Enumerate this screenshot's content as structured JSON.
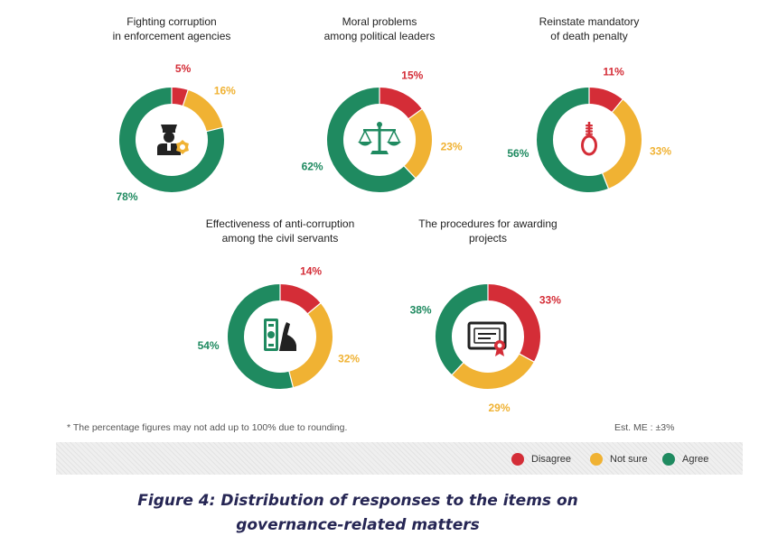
{
  "colors": {
    "disagree": "#d42d37",
    "not_sure": "#f0b233",
    "agree": "#1f8a60",
    "icon_dark": "#222222"
  },
  "chart_data": [
    {
      "type": "pie",
      "title": "Fighting corruption\nin enforcement agencies",
      "icon": "police-officer-badge-icon",
      "series": [
        {
          "name": "Disagree",
          "value": 5,
          "label": "5%"
        },
        {
          "name": "Not sure",
          "value": 16,
          "label": "16%"
        },
        {
          "name": "Agree",
          "value": 78,
          "label": "78%"
        }
      ]
    },
    {
      "type": "pie",
      "title": "Moral problems\namong political leaders",
      "icon": "scales-icon",
      "series": [
        {
          "name": "Disagree",
          "value": 15,
          "label": "15%"
        },
        {
          "name": "Not sure",
          "value": 23,
          "label": "23%"
        },
        {
          "name": "Agree",
          "value": 62,
          "label": "62%"
        }
      ]
    },
    {
      "type": "pie",
      "title": "Reinstate mandatory\nof death penalty",
      "icon": "noose-icon",
      "series": [
        {
          "name": "Disagree",
          "value": 11,
          "label": "11%"
        },
        {
          "name": "Not sure",
          "value": 33,
          "label": "33%"
        },
        {
          "name": "Agree",
          "value": 56,
          "label": "56%"
        }
      ]
    },
    {
      "type": "pie",
      "title": "Effectiveness of anti-corruption\namong the civil servants",
      "icon": "money-hand-icon",
      "series": [
        {
          "name": "Disagree",
          "value": 14,
          "label": "14%"
        },
        {
          "name": "Not sure",
          "value": 32,
          "label": "32%"
        },
        {
          "name": "Agree",
          "value": 54,
          "label": "54%"
        }
      ]
    },
    {
      "type": "pie",
      "title": "The procedures for awarding\nprojects",
      "icon": "certificate-icon",
      "series": [
        {
          "name": "Disagree",
          "value": 33,
          "label": "33%"
        },
        {
          "name": "Not sure",
          "value": 29,
          "label": "29%"
        },
        {
          "name": "Agree",
          "value": 38,
          "label": "38%"
        }
      ]
    }
  ],
  "footnote": "* The percentage figures may not add up to 100% due to rounding.",
  "margin_of_error": "Est. ME : ±3%",
  "legend": {
    "disagree": "Disagree",
    "not_sure": "Not sure",
    "agree": "Agree"
  },
  "caption": {
    "line1": "Figure 4: Distribution of responses to the items on",
    "line2": "governance-related matters"
  }
}
